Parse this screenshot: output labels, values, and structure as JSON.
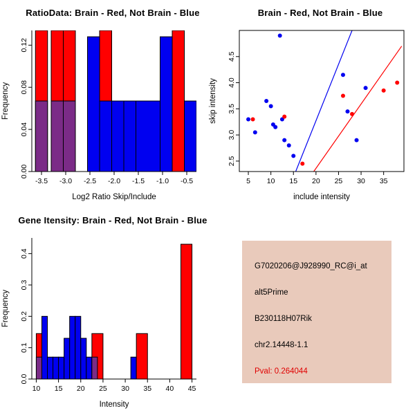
{
  "palette": {
    "red": "#ff0000",
    "blue": "#0000f0",
    "purple": "#7b2b87",
    "axis": "#000000",
    "background": "#ffffff"
  },
  "chart_data": [
    {
      "type": "bar",
      "name": "ratio-histogram",
      "title": "RatioData: Brain - Red, Not Brain - Blue",
      "xlabel": "Log2 Ratio Skip/Include",
      "ylabel": "Frequency",
      "xlim": [
        -3.7,
        -0.3
      ],
      "ylim": [
        0,
        0.134
      ],
      "xticks": [
        -3.5,
        -3.0,
        -2.5,
        -2.0,
        -1.5,
        -1.0,
        -0.5
      ],
      "xtick_labels": [
        "-3.5",
        "-3.0",
        "-2.5",
        "-2.0",
        "-1.5",
        "-1.0",
        "-0.5"
      ],
      "yticks": [
        0.0,
        0.04,
        0.08,
        0.12
      ],
      "ytick_labels": [
        "0.00",
        "0.04",
        "0.08",
        "0.12"
      ],
      "box": false,
      "bars": [
        {
          "x0": -3.625,
          "x1": -3.375,
          "h": 0.14,
          "color": "red"
        },
        {
          "x0": -3.625,
          "x1": -3.375,
          "h": 0.067,
          "color": "purple"
        },
        {
          "x0": -3.3,
          "x1": -3.05,
          "h": 0.14,
          "color": "red"
        },
        {
          "x0": -3.3,
          "x1": -3.05,
          "h": 0.067,
          "color": "purple"
        },
        {
          "x0": -3.05,
          "x1": -2.8,
          "h": 0.14,
          "color": "red"
        },
        {
          "x0": -3.05,
          "x1": -2.8,
          "h": 0.067,
          "color": "purple"
        },
        {
          "x0": -2.55,
          "x1": -2.3,
          "h": 0.128,
          "color": "blue"
        },
        {
          "x0": -2.3,
          "x1": -2.05,
          "h": 0.14,
          "color": "red"
        },
        {
          "x0": -2.3,
          "x1": -2.05,
          "h": 0.067,
          "color": "blue"
        },
        {
          "x0": -2.05,
          "x1": -1.8,
          "h": 0.067,
          "color": "blue"
        },
        {
          "x0": -1.8,
          "x1": -1.55,
          "h": 0.067,
          "color": "blue"
        },
        {
          "x0": -1.55,
          "x1": -1.05,
          "h": 0.067,
          "color": "blue"
        },
        {
          "x0": -1.05,
          "x1": -0.8,
          "h": 0.128,
          "color": "blue"
        },
        {
          "x0": -0.8,
          "x1": -0.55,
          "h": 0.14,
          "color": "red"
        },
        {
          "x0": -0.55,
          "x1": -0.3,
          "h": 0.067,
          "color": "blue"
        }
      ]
    },
    {
      "type": "scatter",
      "name": "intensity-scatter",
      "title": "Brain - Red, Not Brain - Blue",
      "xlabel": "include intensity",
      "ylabel": "skip intensity",
      "xlim": [
        3,
        39.5
      ],
      "ylim": [
        2.3,
        5.0
      ],
      "xticks": [
        5,
        10,
        15,
        20,
        25,
        30,
        35
      ],
      "xtick_labels": [
        "5",
        "10",
        "15",
        "20",
        "25",
        "30",
        "35"
      ],
      "yticks": [
        2.5,
        3.0,
        3.5,
        4.0,
        4.5
      ],
      "ytick_labels": [
        "2.5",
        "3.0",
        "3.5",
        "4.0",
        "4.5"
      ],
      "box": true,
      "series": [
        {
          "name": "not-brain",
          "color": "blue",
          "points": [
            [
              5,
              3.3
            ],
            [
              6.5,
              3.05
            ],
            [
              9,
              3.65
            ],
            [
              10,
              3.55
            ],
            [
              10.5,
              3.2
            ],
            [
              11,
              3.15
            ],
            [
              12,
              4.9
            ],
            [
              12.5,
              3.3
            ],
            [
              13,
              2.9
            ],
            [
              14,
              2.8
            ],
            [
              15,
              2.6
            ],
            [
              26,
              4.15
            ],
            [
              27,
              3.45
            ],
            [
              29,
              2.9
            ],
            [
              31,
              3.9
            ]
          ]
        },
        {
          "name": "brain",
          "color": "red",
          "points": [
            [
              6,
              3.3
            ],
            [
              13,
              3.35
            ],
            [
              17,
              2.45
            ],
            [
              26,
              3.75
            ],
            [
              28,
              3.4
            ],
            [
              35,
              3.85
            ],
            [
              38,
              4.0
            ]
          ]
        }
      ],
      "lines": [
        {
          "color": "blue",
          "x0": 15.5,
          "y0": 2.3,
          "x1": 28,
          "y1": 5.0
        },
        {
          "color": "red",
          "x0": 19.5,
          "y0": 2.3,
          "x1": 39,
          "y1": 4.7
        }
      ]
    },
    {
      "type": "bar",
      "name": "gene-intensity-histogram",
      "title": "Gene Itensity: Brain - Red, Not Brain - Blue",
      "xlabel": "Intensity",
      "ylabel": "Frequency",
      "xlim": [
        9,
        46
      ],
      "ylim": [
        0,
        0.45
      ],
      "xticks": [
        10,
        15,
        20,
        25,
        30,
        35,
        40,
        45
      ],
      "xtick_labels": [
        "10",
        "15",
        "20",
        "25",
        "30",
        "35",
        "40",
        "45"
      ],
      "yticks": [
        0.0,
        0.1,
        0.2,
        0.3,
        0.4
      ],
      "ytick_labels": [
        "0.0",
        "0.1",
        "0.2",
        "0.3",
        "0.4"
      ],
      "box": false,
      "bars": [
        {
          "x0": 10,
          "x1": 12.5,
          "h": 0.145,
          "color": "red"
        },
        {
          "x0": 10,
          "x1": 11.25,
          "h": 0.07,
          "color": "purple"
        },
        {
          "x0": 11.25,
          "x1": 12.5,
          "h": 0.2,
          "color": "blue"
        },
        {
          "x0": 12.5,
          "x1": 13.75,
          "h": 0.07,
          "color": "blue"
        },
        {
          "x0": 13.75,
          "x1": 15,
          "h": 0.07,
          "color": "blue"
        },
        {
          "x0": 15,
          "x1": 16.25,
          "h": 0.07,
          "color": "blue"
        },
        {
          "x0": 16.25,
          "x1": 17.5,
          "h": 0.13,
          "color": "blue"
        },
        {
          "x0": 17.5,
          "x1": 18.75,
          "h": 0.2,
          "color": "blue"
        },
        {
          "x0": 18.75,
          "x1": 20,
          "h": 0.2,
          "color": "blue"
        },
        {
          "x0": 20,
          "x1": 21.25,
          "h": 0.13,
          "color": "blue"
        },
        {
          "x0": 21.25,
          "x1": 22.5,
          "h": 0.07,
          "color": "blue"
        },
        {
          "x0": 22.5,
          "x1": 25,
          "h": 0.145,
          "color": "red"
        },
        {
          "x0": 22.5,
          "x1": 23.75,
          "h": 0.07,
          "color": "purple"
        },
        {
          "x0": 31.25,
          "x1": 32.5,
          "h": 0.07,
          "color": "blue"
        },
        {
          "x0": 32.5,
          "x1": 35,
          "h": 0.145,
          "color": "red"
        },
        {
          "x0": 42.5,
          "x1": 45,
          "h": 0.43,
          "color": "red"
        }
      ]
    }
  ],
  "info_box": {
    "background": "#e9cabb",
    "lines": [
      "G7020206@J928990_RC@i_at",
      "alt5Prime",
      "B230118H07Rik",
      "chr2.14448-1.1"
    ],
    "pval": "Pval: 0.264044",
    "pval_color": "#e00000"
  }
}
